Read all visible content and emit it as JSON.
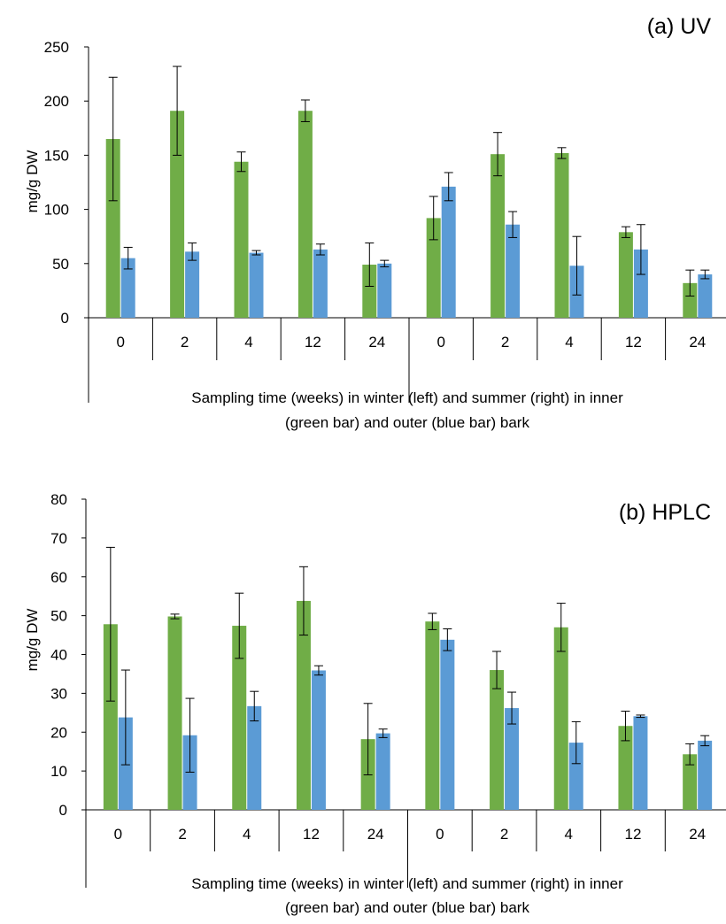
{
  "colors": {
    "inner": "#70AD47",
    "outer": "#5B9BD5",
    "axis": "#000000"
  },
  "chart_data": [
    {
      "type": "bar",
      "title": "(a) UV",
      "ylabel": "mg/g DW",
      "xlabel_lines": [
        "Sampling time (weeks) in winter (left) and summer (right) in inner",
        "(green bar) and outer (blue bar) bark"
      ],
      "categories": [
        "0",
        "2",
        "4",
        "12",
        "24",
        "0",
        "2",
        "4",
        "12",
        "24"
      ],
      "group_split_after": 5,
      "ylim": [
        0,
        250
      ],
      "yticks": [
        0,
        50,
        100,
        150,
        200,
        250
      ],
      "legend": "none",
      "grid": false,
      "series": [
        {
          "color": "#70AD47",
          "values": [
            165,
            191,
            144,
            191,
            49,
            92,
            151,
            152,
            79,
            32
          ],
          "errors": [
            57,
            41,
            9,
            10,
            20,
            20,
            20,
            5,
            5,
            12
          ]
        },
        {
          "color": "#5B9BD5",
          "values": [
            55,
            61,
            60,
            63,
            50,
            121,
            86,
            48,
            63,
            40
          ],
          "errors": [
            10,
            8,
            2,
            5,
            3,
            13,
            12,
            27,
            23,
            4
          ]
        }
      ]
    },
    {
      "type": "bar",
      "title": "(b) HPLC",
      "ylabel": "mg/g DW",
      "xlabel_lines": [
        "Sampling time (weeks) in winter (left) and summer (right) in inner",
        "(green bar) and outer (blue bar) bark"
      ],
      "categories": [
        "0",
        "2",
        "4",
        "12",
        "24",
        "0",
        "2",
        "4",
        "12",
        "24"
      ],
      "group_split_after": 5,
      "ylim": [
        0,
        80
      ],
      "yticks": [
        0,
        10,
        20,
        30,
        40,
        50,
        60,
        70,
        80
      ],
      "legend": "none",
      "grid": false,
      "series": [
        {
          "color": "#70AD47",
          "values": [
            47.8,
            49.8,
            47.4,
            53.8,
            18.2,
            48.5,
            36,
            47,
            21.6,
            14.3
          ],
          "errors": [
            19.8,
            0.6,
            8.4,
            8.8,
            9.2,
            2.1,
            4.8,
            6.2,
            3.8,
            2.7
          ]
        },
        {
          "color": "#5B9BD5",
          "values": [
            23.8,
            19.2,
            26.7,
            35.9,
            19.7,
            43.8,
            26.2,
            17.3,
            24.1,
            17.8
          ],
          "errors": [
            12.2,
            9.5,
            3.8,
            1.2,
            1.1,
            2.8,
            4.1,
            5.4,
            0.3,
            1.3
          ]
        }
      ]
    }
  ]
}
